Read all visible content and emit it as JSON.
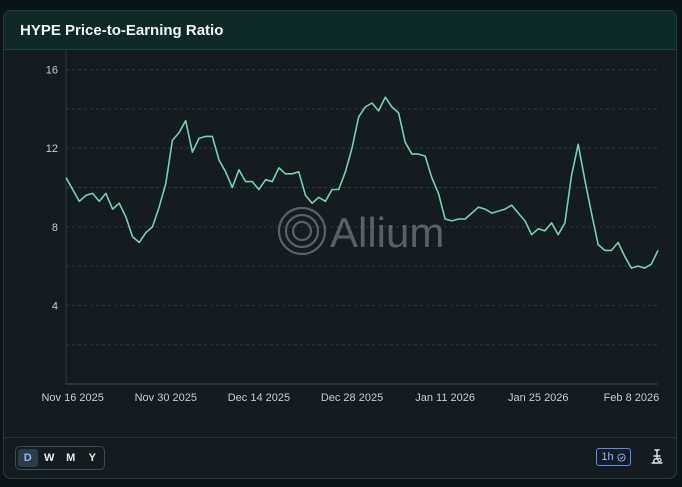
{
  "card": {
    "title": "HYPE Price-to-Earning Ratio"
  },
  "watermark": {
    "text": "Allium"
  },
  "footer": {
    "ranges": [
      "D",
      "W",
      "M",
      "Y"
    ],
    "active_range": "D",
    "interval": "1h",
    "interval_icon": "clock-icon",
    "tool_icon": "microscope-icon"
  },
  "colors": {
    "line": "#6fd3b6",
    "accent": "#4c8dff",
    "header_bg": "#0f2a26"
  },
  "chart_data": {
    "type": "line",
    "title": "HYPE Price-to-Earning Ratio",
    "xlabel": "",
    "ylabel": "",
    "ylim": [
      0,
      17
    ],
    "yticks": [
      4,
      8,
      12,
      16
    ],
    "grid": true,
    "xlim": [
      "2025-11-15",
      "2026-02-12"
    ],
    "xticks": [
      {
        "date": "2025-11-16",
        "label": "Nov 16 2025"
      },
      {
        "date": "2025-11-30",
        "label": "Nov 30 2025"
      },
      {
        "date": "2025-12-14",
        "label": "Dec 14 2025"
      },
      {
        "date": "2025-12-28",
        "label": "Dec 28 2025"
      },
      {
        "date": "2026-01-11",
        "label": "Jan 11 2026"
      },
      {
        "date": "2026-01-25",
        "label": "Jan 25 2026"
      },
      {
        "date": "2026-02-08",
        "label": "Feb 8 2026"
      }
    ],
    "series": [
      {
        "values": [
          [
            "2025-11-15",
            10.5
          ],
          [
            "2025-11-16",
            9.9
          ],
          [
            "2025-11-17",
            9.3
          ],
          [
            "2025-11-18",
            9.6
          ],
          [
            "2025-11-19",
            9.7
          ],
          [
            "2025-11-20",
            9.3
          ],
          [
            "2025-11-21",
            9.7
          ],
          [
            "2025-11-22",
            8.9
          ],
          [
            "2025-11-23",
            9.2
          ],
          [
            "2025-11-24",
            8.5
          ],
          [
            "2025-11-25",
            7.5
          ],
          [
            "2025-11-26",
            7.2
          ],
          [
            "2025-11-27",
            7.7
          ],
          [
            "2025-11-28",
            8.0
          ],
          [
            "2025-11-29",
            9.0
          ],
          [
            "2025-11-30",
            10.2
          ],
          [
            "2025-12-01",
            12.4
          ],
          [
            "2025-12-02",
            12.8
          ],
          [
            "2025-12-03",
            13.4
          ],
          [
            "2025-12-04",
            11.8
          ],
          [
            "2025-12-05",
            12.5
          ],
          [
            "2025-12-06",
            12.6
          ],
          [
            "2025-12-07",
            12.6
          ],
          [
            "2025-12-08",
            11.4
          ],
          [
            "2025-12-09",
            10.8
          ],
          [
            "2025-12-10",
            10.0
          ],
          [
            "2025-12-11",
            10.9
          ],
          [
            "2025-12-12",
            10.3
          ],
          [
            "2025-12-13",
            10.3
          ],
          [
            "2025-12-14",
            9.9
          ],
          [
            "2025-12-15",
            10.4
          ],
          [
            "2025-12-16",
            10.3
          ],
          [
            "2025-12-17",
            11.0
          ],
          [
            "2025-12-18",
            10.7
          ],
          [
            "2025-12-19",
            10.7
          ],
          [
            "2025-12-20",
            10.8
          ],
          [
            "2025-12-21",
            9.6
          ],
          [
            "2025-12-22",
            9.2
          ],
          [
            "2025-12-23",
            9.5
          ],
          [
            "2025-12-24",
            9.3
          ],
          [
            "2025-12-25",
            9.9
          ],
          [
            "2025-12-26",
            9.9
          ],
          [
            "2025-12-27",
            10.8
          ],
          [
            "2025-12-28",
            12.0
          ],
          [
            "2025-12-29",
            13.6
          ],
          [
            "2025-12-30",
            14.1
          ],
          [
            "2025-12-31",
            14.3
          ],
          [
            "2026-01-01",
            13.9
          ],
          [
            "2026-01-02",
            14.6
          ],
          [
            "2026-01-03",
            14.1
          ],
          [
            "2026-01-04",
            13.8
          ],
          [
            "2026-01-05",
            12.3
          ],
          [
            "2026-01-06",
            11.7
          ],
          [
            "2026-01-07",
            11.7
          ],
          [
            "2026-01-08",
            11.6
          ],
          [
            "2026-01-09",
            10.5
          ],
          [
            "2026-01-10",
            9.7
          ],
          [
            "2026-01-11",
            8.4
          ],
          [
            "2026-01-12",
            8.3
          ],
          [
            "2026-01-13",
            8.4
          ],
          [
            "2026-01-14",
            8.4
          ],
          [
            "2026-01-15",
            8.7
          ],
          [
            "2026-01-16",
            9.0
          ],
          [
            "2026-01-17",
            8.9
          ],
          [
            "2026-01-18",
            8.7
          ],
          [
            "2026-01-19",
            8.8
          ],
          [
            "2026-01-20",
            8.9
          ],
          [
            "2026-01-21",
            9.1
          ],
          [
            "2026-01-22",
            8.7
          ],
          [
            "2026-01-23",
            8.3
          ],
          [
            "2026-01-24",
            7.6
          ],
          [
            "2026-01-25",
            7.9
          ],
          [
            "2026-01-26",
            7.8
          ],
          [
            "2026-01-27",
            8.2
          ],
          [
            "2026-01-28",
            7.6
          ],
          [
            "2026-01-29",
            8.2
          ],
          [
            "2026-01-30",
            10.6
          ],
          [
            "2026-01-31",
            12.2
          ],
          [
            "2026-02-01",
            10.4
          ],
          [
            "2026-02-02",
            8.7
          ],
          [
            "2026-02-03",
            7.1
          ],
          [
            "2026-02-04",
            6.8
          ],
          [
            "2026-02-05",
            6.8
          ],
          [
            "2026-02-06",
            7.2
          ],
          [
            "2026-02-07",
            6.5
          ],
          [
            "2026-02-08",
            5.9
          ],
          [
            "2026-02-09",
            6.0
          ],
          [
            "2026-02-10",
            5.9
          ],
          [
            "2026-02-11",
            6.1
          ],
          [
            "2026-02-12",
            6.8
          ]
        ]
      }
    ]
  }
}
